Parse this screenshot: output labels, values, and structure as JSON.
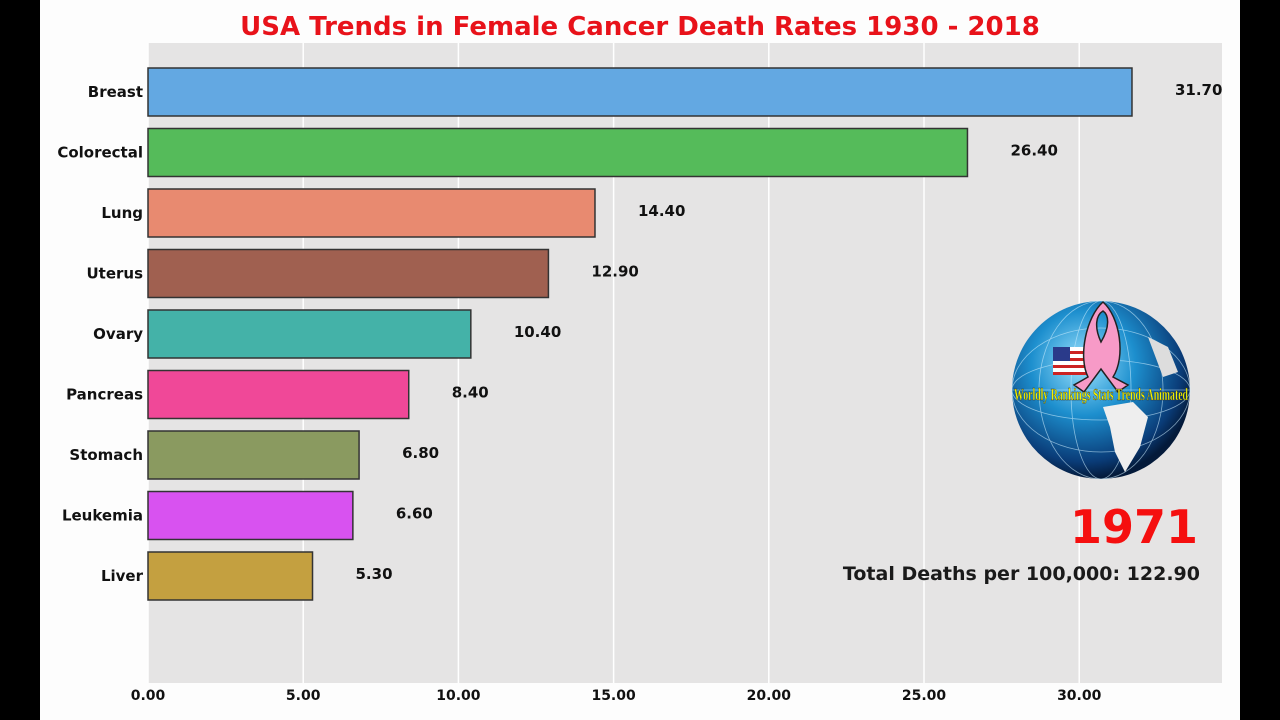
{
  "chart_data": {
    "type": "bar",
    "orientation": "horizontal",
    "title": "USA Trends in Female Cancer Death Rates 1930 - 2018",
    "categories": [
      "Breast",
      "Colorectal",
      "Lung",
      "Uterus",
      "Ovary",
      "Pancreas",
      "Stomach",
      "Leukemia",
      "Liver"
    ],
    "values": [
      31.7,
      26.4,
      14.4,
      12.9,
      10.4,
      8.4,
      6.8,
      6.6,
      5.3
    ],
    "value_labels": [
      "31.70",
      "26.40",
      "14.40",
      "12.90",
      "10.40",
      "8.40",
      "6.80",
      "6.60",
      "5.30"
    ],
    "colors": [
      "#63a8e2",
      "#55bb5a",
      "#e88a70",
      "#a06050",
      "#44b2a8",
      "#f04898",
      "#8a9a60",
      "#d852f0",
      "#c4a040"
    ],
    "xticks": [
      0,
      5,
      10,
      15,
      20,
      25,
      30
    ],
    "xtick_labels": [
      "0.00",
      "5.00",
      "10.00",
      "15.00",
      "20.00",
      "25.00",
      "30.00"
    ],
    "xlim": [
      0,
      34.6
    ],
    "grid": true,
    "xlabel": "",
    "ylabel": ""
  },
  "annotations": {
    "year": "1971",
    "total": "Total Deaths per 100,000: 122.90"
  },
  "logo": {
    "text": "Worldly Rankings Stats Trends Animated"
  },
  "colors": {
    "title": "#e8121a",
    "year": "#f50f0f",
    "plot_bg": "#e5e4e4"
  }
}
